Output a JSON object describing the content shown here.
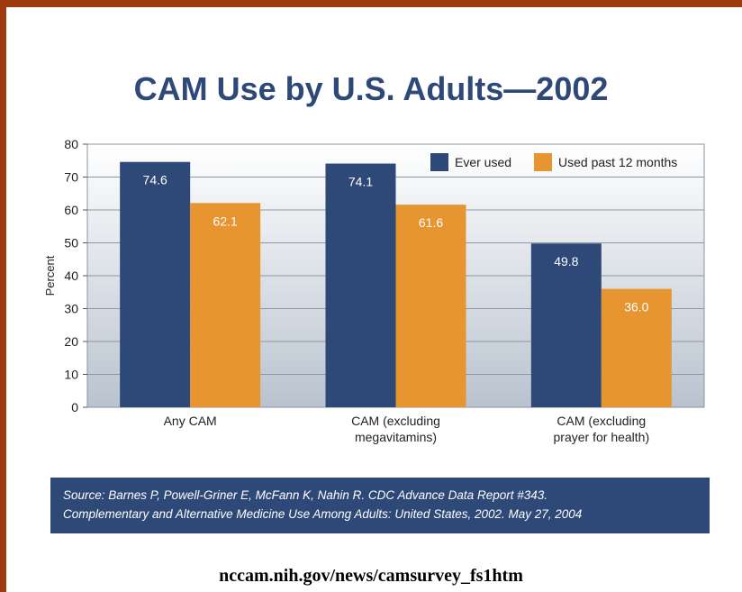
{
  "title": "CAM Use by U.S. Adults—2002",
  "chart_data": {
    "type": "bar",
    "categories": [
      [
        "Any CAM"
      ],
      [
        "CAM (excluding",
        "megavitamins)"
      ],
      [
        "CAM (excluding",
        "prayer for health)"
      ]
    ],
    "series": [
      {
        "name": "Ever used",
        "values": [
          74.6,
          74.1,
          49.8
        ],
        "labels": [
          "74.6",
          "74.1",
          "49.8"
        ],
        "color": "#2e4877"
      },
      {
        "name": "Used past 12 months",
        "values": [
          62.1,
          61.6,
          36.0
        ],
        "labels": [
          "62.1",
          "61.6",
          "36.0"
        ],
        "color": "#e69530"
      }
    ],
    "ylabel": "Percent",
    "ylim": [
      0,
      80
    ],
    "yticks": [
      0,
      10,
      20,
      30,
      40,
      50,
      60,
      70,
      80
    ],
    "grid": true,
    "legend": "top-right"
  },
  "source_lines": [
    "Source: Barnes P, Powell-Griner E, McFann K, Nahin R. CDC Advance Data Report #343.",
    "Complementary and Alternative Medicine Use Among Adults: United States, 2002. May 27, 2004"
  ],
  "footer_url": "nccam.nih.gov/news/camsurvey_fs1htm"
}
